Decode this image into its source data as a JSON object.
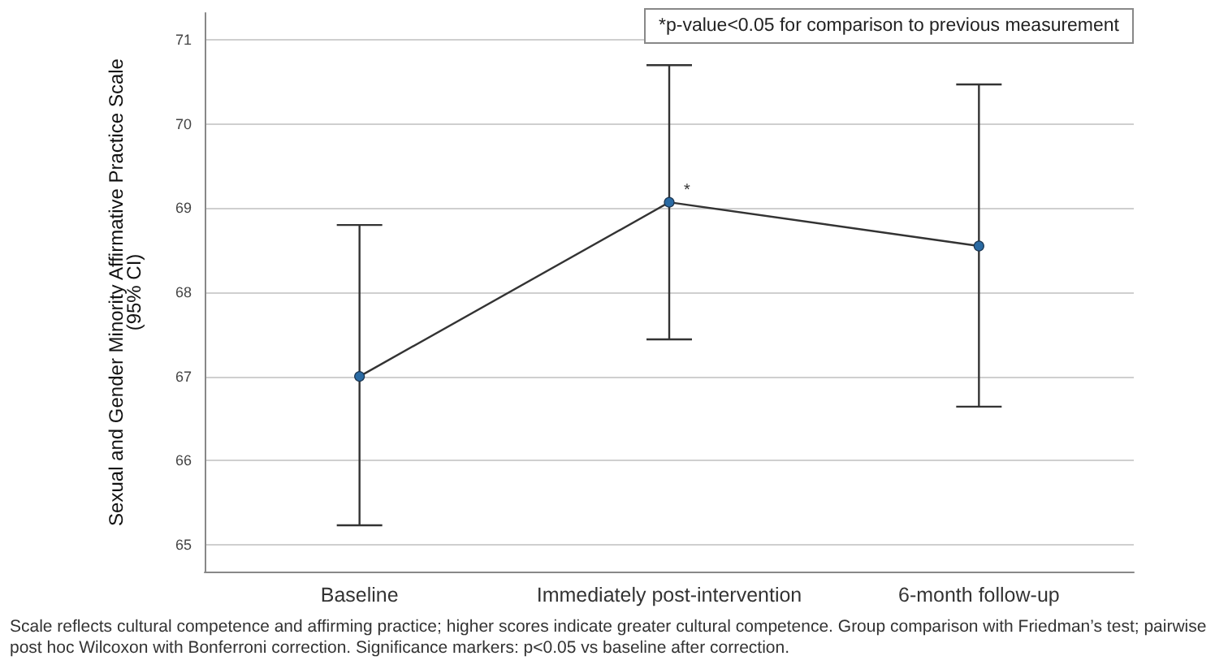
{
  "chart_data": {
    "type": "line",
    "ylabel": "Sexual and Gender Minority Affirmative Practice Scale\n(95% CI)",
    "categories": [
      "Baseline",
      "Immediately post-intervention",
      "6-month follow-up"
    ],
    "series": [
      {
        "color": "#333333",
        "colors": [
          "#2a6aa3",
          "#2a6aa3",
          "#2a6aa3"
        ],
        "values": [
          67.0,
          69.07,
          68.55
        ],
        "errors": [
          [
            65.23,
            68.8
          ],
          [
            67.44,
            70.7
          ],
          [
            66.64,
            70.47
          ]
        ]
      }
    ],
    "ylim": [
      64.68,
      71.32
    ],
    "yticks": [
      65,
      66,
      67,
      68,
      69,
      70,
      71
    ],
    "grid": "y",
    "marker": "circle",
    "line_style": "solid",
    "annotations": [
      "*p-value<0.05 for comparison to previous measurement",
      {
        "text": "*",
        "x": "Immediately post-intervention",
        "y": 69.07
      },
      "Scale reflects cultural competence and affirming practice; higher scores indicate greater cultural competence. Group comparison with Friedman’s test; pairwise post hoc Wilcoxon with Bonferroni correction. Significance markers: p<0.05 vs baseline after correction."
    ]
  }
}
